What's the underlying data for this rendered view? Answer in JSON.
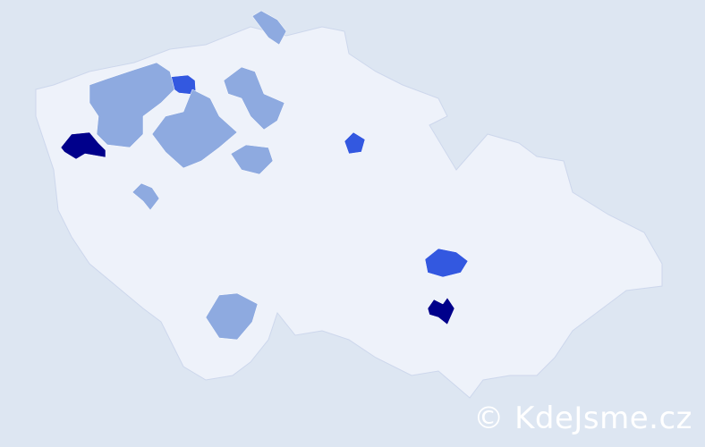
{
  "watermark": "© KdeJsme.cz",
  "colors": {
    "background": "#dde6f2",
    "country": "#eef2fa",
    "border": "#cdd7ec",
    "level_low": "#8eaae0",
    "level_mid": "#3358e0",
    "level_high": "#00008b"
  },
  "regions": [
    {
      "level": "high"
    },
    {
      "level": "high"
    },
    {
      "level": "mid"
    },
    {
      "level": "mid"
    },
    {
      "level": "mid"
    },
    {
      "level": "low"
    },
    {
      "level": "low"
    },
    {
      "level": "low"
    },
    {
      "level": "low"
    },
    {
      "level": "low"
    },
    {
      "level": "low"
    },
    {
      "level": "low"
    }
  ]
}
